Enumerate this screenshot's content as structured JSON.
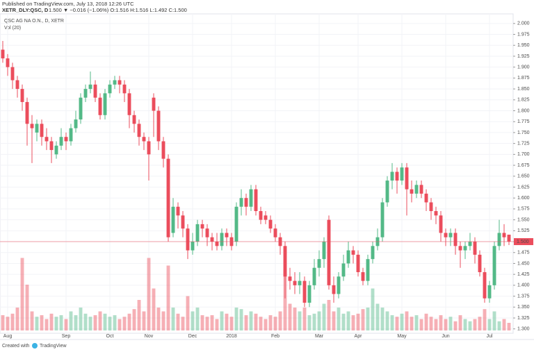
{
  "header": {
    "published": "Published on TradingView.com, July 13, 2018 12:26 UTC",
    "symbol": "XETR_DLY:QSC, D",
    "quote": "1.500 ▼ −0.016 (−1.06%) O:1.516 H:1.516 L:1.492 C:1.500"
  },
  "footer": {
    "created": "Created with",
    "brand": "TradingView"
  },
  "chart_data": {
    "type": "candlestick",
    "title": "QSC AG NA O.N., D, XETR",
    "volume_label": "Vol (20)",
    "up_color": "#53b987",
    "down_color": "#eb4d5c",
    "grid": true,
    "ylim": [
      1.29,
      2.022
    ],
    "yticks": [
      {
        "value": 1.3,
        "label": "1.300"
      },
      {
        "value": 1.325,
        "label": "1.325"
      },
      {
        "value": 1.35,
        "label": "1.350"
      },
      {
        "value": 1.375,
        "label": "1.375"
      },
      {
        "value": 1.4,
        "label": "1.400"
      },
      {
        "value": 1.425,
        "label": "1.425"
      },
      {
        "value": 1.45,
        "label": "1.450"
      },
      {
        "value": 1.475,
        "label": "1.475"
      },
      {
        "value": 1.5,
        "label": "1.500"
      },
      {
        "value": 1.525,
        "label": "1.525"
      },
      {
        "value": 1.55,
        "label": "1.550"
      },
      {
        "value": 1.575,
        "label": "1.575"
      },
      {
        "value": 1.6,
        "label": "1.600"
      },
      {
        "value": 1.625,
        "label": "1.625"
      },
      {
        "value": 1.65,
        "label": "1.650"
      },
      {
        "value": 1.675,
        "label": "1.675"
      },
      {
        "value": 1.7,
        "label": "1.700"
      },
      {
        "value": 1.725,
        "label": "1.725"
      },
      {
        "value": 1.75,
        "label": "1.750"
      },
      {
        "value": 1.775,
        "label": "1.775"
      },
      {
        "value": 1.8,
        "label": "1.800"
      },
      {
        "value": 1.825,
        "label": "1.825"
      },
      {
        "value": 1.85,
        "label": "1.850"
      },
      {
        "value": 1.875,
        "label": "1.875"
      },
      {
        "value": 1.9,
        "label": "1.900"
      },
      {
        "value": 1.925,
        "label": "1.925"
      },
      {
        "value": 1.95,
        "label": "1.950"
      },
      {
        "value": 1.975,
        "label": "1.975"
      },
      {
        "value": 2.0,
        "label": "2.000"
      }
    ],
    "last_price": {
      "value": 1.5,
      "label": "1.500"
    },
    "categories": [
      null,
      "Aug",
      null,
      null,
      null,
      null,
      null,
      null,
      null,
      null,
      null,
      null,
      null,
      "Sep",
      null,
      null,
      null,
      null,
      null,
      null,
      null,
      null,
      "Oct",
      null,
      null,
      null,
      null,
      null,
      null,
      null,
      "Nov",
      null,
      null,
      null,
      null,
      null,
      null,
      null,
      null,
      "Dec",
      null,
      null,
      null,
      null,
      null,
      null,
      null,
      "2018",
      null,
      null,
      null,
      null,
      null,
      null,
      null,
      null,
      "Feb",
      null,
      null,
      null,
      null,
      null,
      null,
      null,
      null,
      "Mar",
      null,
      null,
      null,
      null,
      null,
      null,
      null,
      "Apr",
      null,
      null,
      null,
      null,
      null,
      null,
      null,
      null,
      "May",
      null,
      null,
      null,
      null,
      null,
      null,
      null,
      null,
      "Jun",
      null,
      null,
      null,
      null,
      null,
      null,
      null,
      null,
      "Jul",
      null,
      null,
      null,
      null
    ],
    "open": [
      1.94,
      1.92,
      1.9,
      1.87,
      1.85,
      1.82,
      1.77,
      1.75,
      1.77,
      1.74,
      1.73,
      1.7,
      1.72,
      1.74,
      1.73,
      1.76,
      1.78,
      1.83,
      1.85,
      1.86,
      1.83,
      1.79,
      1.84,
      1.86,
      1.87,
      1.86,
      1.84,
      1.79,
      1.77,
      1.74,
      1.73,
      1.83,
      1.8,
      1.73,
      1.69,
      1.52,
      1.58,
      1.56,
      1.53,
      1.48,
      1.5,
      1.54,
      1.53,
      1.51,
      1.5,
      1.49,
      1.52,
      1.51,
      1.5,
      1.58,
      1.6,
      1.58,
      1.62,
      1.57,
      1.56,
      1.55,
      1.53,
      1.51,
      1.49,
      1.42,
      1.41,
      1.4,
      1.41,
      1.36,
      1.4,
      1.44,
      1.46,
      1.55,
      1.4,
      1.38,
      1.42,
      1.45,
      1.48,
      1.47,
      1.43,
      1.41,
      1.46,
      1.49,
      1.51,
      1.59,
      1.64,
      1.66,
      1.64,
      1.67,
      1.62,
      1.61,
      1.63,
      1.61,
      1.59,
      1.57,
      1.56,
      1.52,
      1.51,
      1.52,
      1.49,
      1.48,
      1.49,
      1.5,
      1.47,
      1.43,
      1.37,
      1.4,
      1.49,
      1.52,
      1.516
    ],
    "high": [
      1.96,
      1.93,
      1.91,
      1.88,
      1.86,
      1.83,
      1.79,
      1.78,
      1.78,
      1.76,
      1.74,
      1.73,
      1.76,
      1.75,
      1.77,
      1.8,
      1.84,
      1.86,
      1.89,
      1.87,
      1.84,
      1.85,
      1.87,
      1.88,
      1.88,
      1.87,
      1.85,
      1.8,
      1.78,
      1.75,
      1.74,
      1.84,
      1.81,
      1.74,
      1.7,
      1.6,
      1.59,
      1.57,
      1.54,
      1.52,
      1.55,
      1.55,
      1.54,
      1.52,
      1.52,
      1.53,
      1.53,
      1.52,
      1.59,
      1.62,
      1.61,
      1.63,
      1.63,
      1.58,
      1.57,
      1.56,
      1.54,
      1.52,
      1.5,
      1.44,
      1.43,
      1.43,
      1.42,
      1.41,
      1.46,
      1.48,
      1.51,
      1.56,
      1.42,
      1.43,
      1.47,
      1.5,
      1.49,
      1.48,
      1.44,
      1.47,
      1.5,
      1.53,
      1.6,
      1.65,
      1.68,
      1.67,
      1.68,
      1.68,
      1.64,
      1.64,
      1.64,
      1.62,
      1.6,
      1.58,
      1.57,
      1.53,
      1.53,
      1.53,
      1.5,
      1.5,
      1.52,
      1.51,
      1.48,
      1.44,
      1.41,
      1.5,
      1.55,
      1.54,
      1.516
    ],
    "low": [
      1.91,
      1.88,
      1.85,
      1.83,
      1.8,
      1.72,
      1.68,
      1.73,
      1.72,
      1.71,
      1.68,
      1.69,
      1.71,
      1.71,
      1.72,
      1.75,
      1.77,
      1.82,
      1.84,
      1.82,
      1.78,
      1.78,
      1.83,
      1.85,
      1.84,
      1.82,
      1.76,
      1.75,
      1.72,
      1.71,
      1.64,
      1.74,
      1.71,
      1.67,
      1.5,
      1.51,
      1.53,
      1.51,
      1.46,
      1.47,
      1.49,
      1.51,
      1.49,
      1.48,
      1.48,
      1.48,
      1.49,
      1.48,
      1.49,
      1.56,
      1.56,
      1.57,
      1.56,
      1.54,
      1.54,
      1.52,
      1.5,
      1.47,
      1.37,
      1.39,
      1.38,
      1.38,
      1.35,
      1.35,
      1.39,
      1.42,
      1.44,
      1.39,
      1.36,
      1.37,
      1.41,
      1.44,
      1.45,
      1.42,
      1.4,
      1.4,
      1.45,
      1.48,
      1.5,
      1.58,
      1.62,
      1.61,
      1.63,
      1.56,
      1.59,
      1.6,
      1.6,
      1.57,
      1.55,
      1.54,
      1.5,
      1.49,
      1.49,
      1.47,
      1.44,
      1.46,
      1.48,
      1.45,
      1.42,
      1.36,
      1.36,
      1.39,
      1.48,
      1.49,
      1.492
    ],
    "close": [
      1.92,
      1.9,
      1.87,
      1.85,
      1.82,
      1.77,
      1.76,
      1.77,
      1.74,
      1.73,
      1.71,
      1.72,
      1.74,
      1.73,
      1.76,
      1.78,
      1.83,
      1.85,
      1.86,
      1.83,
      1.79,
      1.84,
      1.86,
      1.87,
      1.86,
      1.84,
      1.79,
      1.77,
      1.74,
      1.73,
      1.7,
      1.8,
      1.73,
      1.69,
      1.51,
      1.58,
      1.56,
      1.53,
      1.48,
      1.5,
      1.54,
      1.53,
      1.51,
      1.5,
      1.49,
      1.52,
      1.51,
      1.49,
      1.58,
      1.6,
      1.58,
      1.62,
      1.57,
      1.55,
      1.55,
      1.53,
      1.51,
      1.49,
      1.42,
      1.41,
      1.4,
      1.41,
      1.36,
      1.4,
      1.44,
      1.46,
      1.5,
      1.4,
      1.38,
      1.42,
      1.45,
      1.48,
      1.47,
      1.43,
      1.41,
      1.46,
      1.49,
      1.51,
      1.59,
      1.64,
      1.66,
      1.64,
      1.67,
      1.62,
      1.61,
      1.63,
      1.61,
      1.59,
      1.57,
      1.56,
      1.52,
      1.51,
      1.52,
      1.49,
      1.48,
      1.49,
      1.5,
      1.47,
      1.43,
      1.37,
      1.4,
      1.49,
      1.52,
      1.51,
      1.5
    ],
    "volume": [
      20,
      18,
      22,
      30,
      95,
      60,
      25,
      18,
      20,
      15,
      22,
      18,
      20,
      15,
      25,
      20,
      30,
      22,
      18,
      20,
      25,
      22,
      18,
      20,
      15,
      18,
      22,
      28,
      40,
      25,
      95,
      55,
      30,
      25,
      85,
      30,
      22,
      18,
      45,
      25,
      30,
      20,
      18,
      20,
      15,
      25,
      22,
      18,
      30,
      28,
      20,
      25,
      22,
      18,
      15,
      20,
      18,
      25,
      80,
      35,
      30,
      25,
      30,
      20,
      22,
      25,
      35,
      40,
      25,
      30,
      22,
      25,
      20,
      22,
      28,
      30,
      55,
      35,
      30,
      25,
      20,
      18,
      22,
      25,
      18,
      20,
      15,
      22,
      18,
      15,
      20,
      15,
      18,
      12,
      20,
      15,
      12,
      15,
      18,
      28,
      15,
      25,
      12,
      15,
      10
    ],
    "volume_lim": [
      0,
      100
    ]
  }
}
